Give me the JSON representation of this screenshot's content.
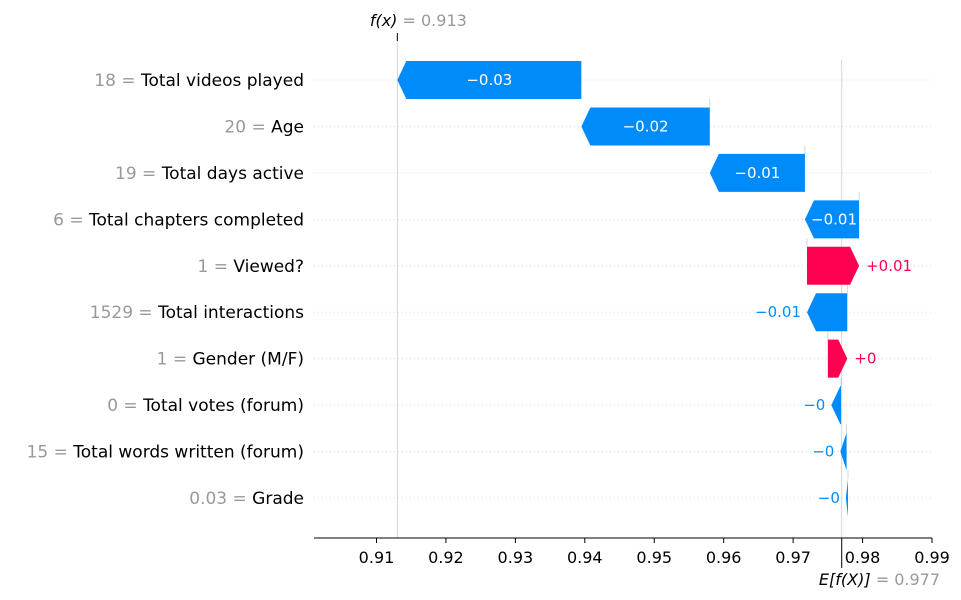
{
  "colors": {
    "negative": "#008bfb",
    "positive": "#ff0051",
    "label_gray": "#999999",
    "text": "#000000",
    "grid": "#cccccc"
  },
  "chart_data": {
    "type": "waterfall",
    "base_value": 0.977,
    "output_value": 0.913,
    "fx_label": "f(x)",
    "fx_value_text": "0.913",
    "efx_label": "E[f(X)]",
    "efx_value_text": "0.977",
    "xlim": [
      0.901,
      0.99
    ],
    "x_ticks": [
      "0.91",
      "0.92",
      "0.93",
      "0.94",
      "0.95",
      "0.96",
      "0.97",
      "0.98",
      "0.99"
    ],
    "x_tick_values": [
      0.91,
      0.92,
      0.93,
      0.94,
      0.95,
      0.96,
      0.97,
      0.98,
      0.99
    ],
    "features": [
      {
        "value": "18",
        "name": "Total videos played",
        "start": 0.9395,
        "end": 0.913,
        "label": "−0.03"
      },
      {
        "value": "20",
        "name": "Age",
        "start": 0.958,
        "end": 0.9395,
        "label": "−0.02"
      },
      {
        "value": "19",
        "name": "Total days active",
        "start": 0.9717,
        "end": 0.958,
        "label": "−0.01"
      },
      {
        "value": "6",
        "name": "Total chapters completed",
        "start": 0.9795,
        "end": 0.9717,
        "label": "−0.01"
      },
      {
        "value": "1",
        "name": "Viewed?",
        "start": 0.972,
        "end": 0.9795,
        "label": "+0.01"
      },
      {
        "value": "1529",
        "name": "Total interactions",
        "start": 0.9778,
        "end": 0.972,
        "label": "−0.01"
      },
      {
        "value": "1",
        "name": "Gender (M/F)",
        "start": 0.975,
        "end": 0.9778,
        "label": "+0"
      },
      {
        "value": "0",
        "name": "Total votes (forum)",
        "start": 0.9769,
        "end": 0.9755,
        "label": "−0"
      },
      {
        "value": "15",
        "name": "Total words written (forum)",
        "start": 0.9777,
        "end": 0.9768,
        "label": "−0"
      },
      {
        "value": "0.03",
        "name": "Grade",
        "start": 0.9779,
        "end": 0.9776,
        "label": "−0"
      }
    ]
  }
}
